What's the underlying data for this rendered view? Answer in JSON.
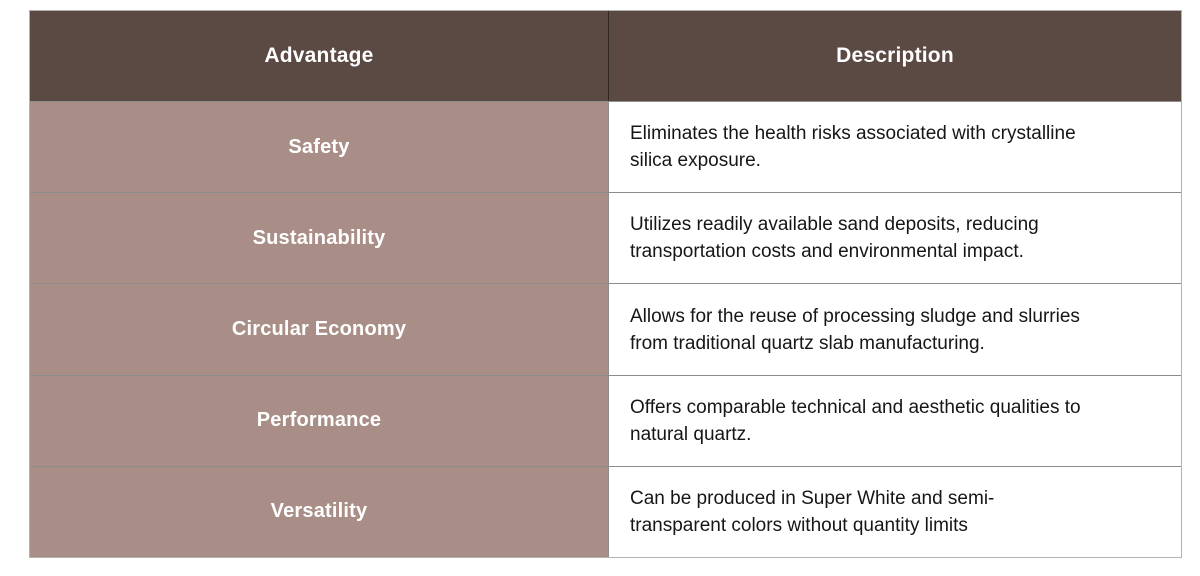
{
  "table": {
    "columns": [
      {
        "label": "Advantage"
      },
      {
        "label": "Description"
      }
    ],
    "rows": [
      {
        "advantage": "Safety",
        "description": "Eliminates the health risks associated with crystalline\nsilica exposure."
      },
      {
        "advantage": "Sustainability",
        "description": "Utilizes readily available sand deposits, reducing\ntransportation costs and environmental impact."
      },
      {
        "advantage": "Circular Economy",
        "description": "Allows for the reuse of processing sludge and slurries\nfrom traditional quartz slab manufacturing."
      },
      {
        "advantage": "Performance",
        "description": "Offers comparable technical and aesthetic qualities to\nnatural quartz."
      },
      {
        "advantage": "Versatility",
        "description": "Can be produced in Super White and semi-\ntransparent colors without quantity limits"
      }
    ],
    "colors": {
      "header_bg": "#5B4A43",
      "header_text": "#FFFFFF",
      "advantage_bg": "#A98E87",
      "advantage_text": "#FFFFFF",
      "description_bg": "#FFFFFF",
      "description_text": "#161616"
    }
  }
}
